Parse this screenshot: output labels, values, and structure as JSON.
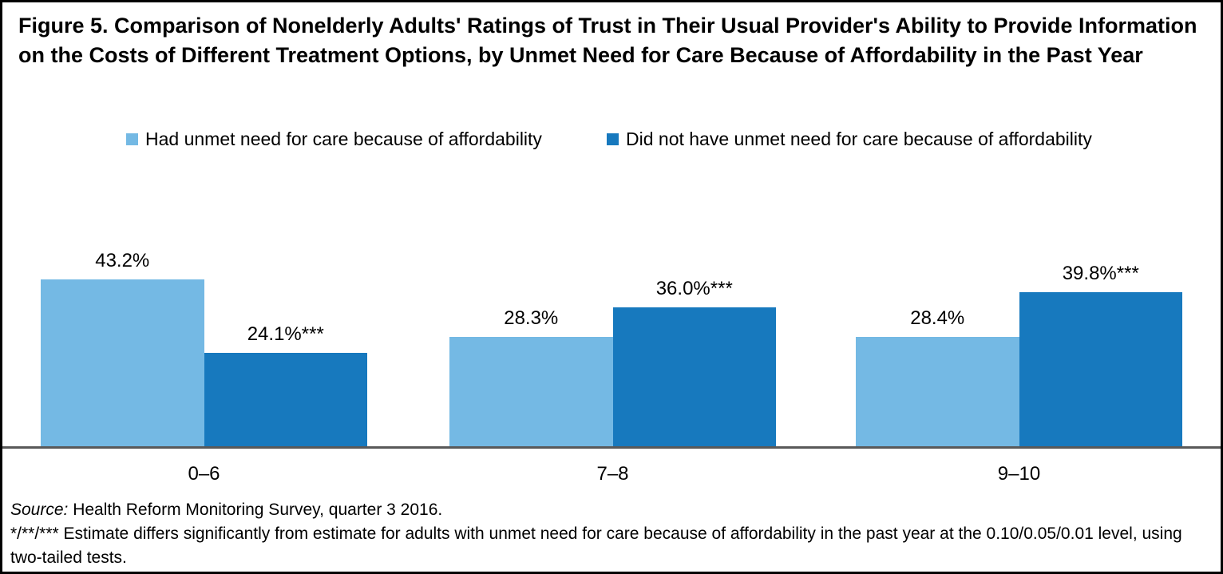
{
  "figure": {
    "title": "Figure 5. Comparison of Nonelderly Adults' Ratings of Trust in Their Usual Provider's Ability to Provide Information on the Costs of Different Treatment Options, by Unmet Need for Care Because of Affordability in the Past Year",
    "source_label": "Source:",
    "source_text": " Health Reform Monitoring Survey, quarter 3 2016.",
    "footnote": "*/**/*** Estimate differs significantly from estimate for adults with unmet need for care because of affordability in the past year at the 0.10/0.05/0.01 level, using two-tailed tests."
  },
  "legend": {
    "items": [
      {
        "label": "Had unmet need for care because of affordability",
        "color": "#74B9E4"
      },
      {
        "label": "Did not have unmet need for care because of affordability",
        "color": "#1779BE"
      }
    ]
  },
  "colors": {
    "light_blue": "#74B9E4",
    "dark_blue": "#1779BE",
    "axis_line": "#595959",
    "border": "#000000"
  },
  "chart_data": {
    "type": "bar",
    "title": "Figure 5. Comparison of Nonelderly Adults' Ratings of Trust in Their Usual Provider's Ability to Provide Information on the Costs of Different Treatment Options, by Unmet Need for Care Because of Affordability in the Past Year",
    "categories": [
      "0–6",
      "7–8",
      "9–10"
    ],
    "series": [
      {
        "name": "Had unmet need for care because of affordability",
        "color": "#74B9E4",
        "values": [
          43.2,
          28.3,
          28.4
        ],
        "labels": [
          "43.2%",
          "28.3%",
          "28.4%"
        ]
      },
      {
        "name": "Did not have unmet need for care because of affordability",
        "color": "#1779BE",
        "values": [
          24.1,
          36.0,
          39.8
        ],
        "labels": [
          "24.1%***",
          "36.0%***",
          "39.8%***"
        ]
      }
    ],
    "xlabel": "",
    "ylabel": "",
    "ylim": [
      0,
      50
    ],
    "grid": false,
    "y_axis_visible": false,
    "legend_position": "top",
    "data_labels": true
  }
}
